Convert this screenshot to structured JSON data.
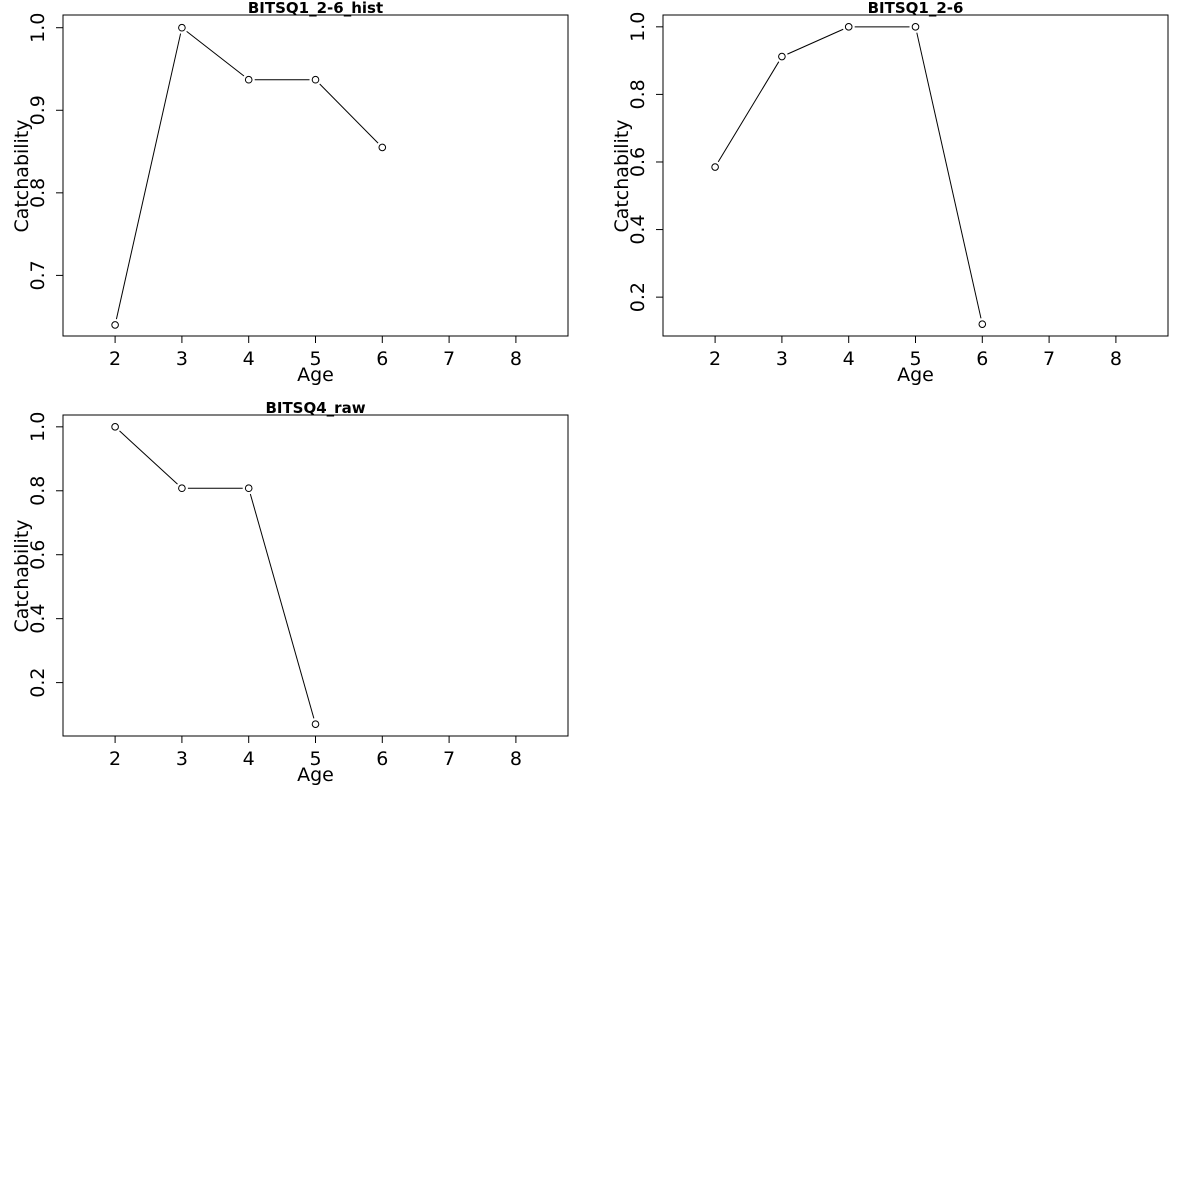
{
  "chart_data": [
    {
      "type": "line",
      "title": "BITSQ1_2-6_hist",
      "xlabel": "Age",
      "ylabel": "Catchability",
      "xlim": [
        1.22,
        8.78
      ],
      "ylim": [
        0.6266,
        1.0154
      ],
      "xticks": [
        2,
        3,
        4,
        5,
        6,
        7,
        8
      ],
      "yticks": [
        0.7,
        0.8,
        0.9,
        1.0
      ],
      "ytick_labels": [
        "0.7",
        "0.8",
        "0.9",
        "1.0"
      ],
      "markers": "open-circle",
      "grid": false,
      "series": [
        {
          "x": [
            2,
            3,
            4,
            5,
            6
          ],
          "y": [
            0.64,
            1.0,
            0.937,
            0.937,
            0.855
          ]
        }
      ]
    },
    {
      "type": "line",
      "title": "BITSQ1_2-6",
      "xlabel": "Age",
      "ylabel": "Catchability",
      "xlim": [
        1.22,
        8.78
      ],
      "ylim": [
        0.085,
        1.035
      ],
      "xticks": [
        2,
        3,
        4,
        5,
        6,
        7,
        8
      ],
      "yticks": [
        0.2,
        0.4,
        0.6,
        0.8,
        1.0
      ],
      "ytick_labels": [
        "0.2",
        "0.4",
        "0.6",
        "0.8",
        "1.0"
      ],
      "markers": "open-circle",
      "grid": false,
      "series": [
        {
          "x": [
            2,
            3,
            4,
            5,
            6
          ],
          "y": [
            0.585,
            0.912,
            1.0,
            1.0,
            0.12
          ]
        }
      ]
    },
    {
      "type": "line",
      "title": "BITSQ4_raw",
      "xlabel": "Age",
      "ylabel": "Catchability",
      "xlim": [
        1.22,
        8.78
      ],
      "ylim": [
        0.033,
        1.037
      ],
      "xticks": [
        2,
        3,
        4,
        5,
        6,
        7,
        8
      ],
      "yticks": [
        0.2,
        0.4,
        0.6,
        0.8,
        1.0
      ],
      "ytick_labels": [
        "0.2",
        "0.4",
        "0.6",
        "0.8",
        "1.0"
      ],
      "markers": "open-circle",
      "grid": false,
      "series": [
        {
          "x": [
            2,
            3,
            4,
            5
          ],
          "y": [
            1.0,
            0.808,
            0.808,
            0.07
          ]
        }
      ]
    }
  ]
}
